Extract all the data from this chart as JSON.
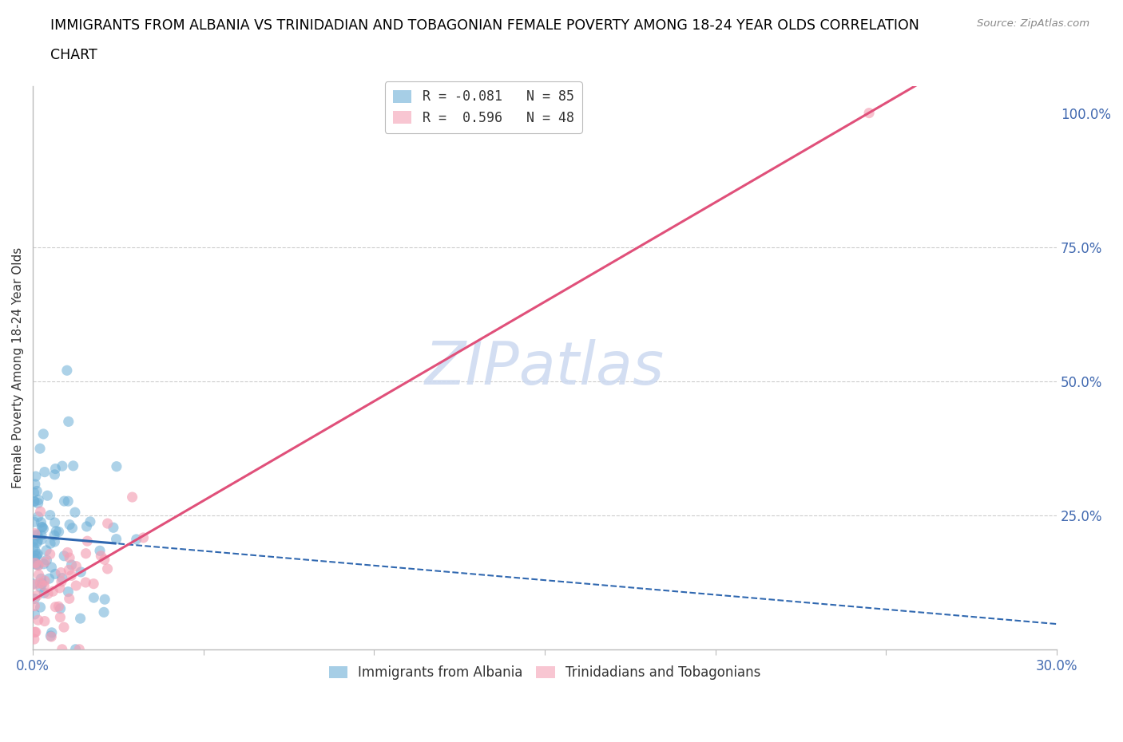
{
  "title_line1": "IMMIGRANTS FROM ALBANIA VS TRINIDADIAN AND TOBAGONIAN FEMALE POVERTY AMONG 18-24 YEAR OLDS CORRELATION",
  "title_line2": "CHART",
  "source": "Source: ZipAtlas.com",
  "ylabel": "Female Poverty Among 18-24 Year Olds",
  "xlim": [
    0.0,
    0.3
  ],
  "ylim": [
    0.0,
    1.05
  ],
  "albania_R": -0.081,
  "albania_N": 85,
  "tt_R": 0.596,
  "tt_N": 48,
  "albania_color": "#6baed6",
  "tt_color": "#f4a0b5",
  "albania_label": "Immigrants from Albania",
  "tt_label": "Trinidadians and Tobagonians",
  "watermark_color": "#ccd9f0",
  "grid_color": "#cccccc",
  "tick_color": "#4169b0",
  "axis_color": "#bbbbbb",
  "title_fontsize": 12.5,
  "axis_label_fontsize": 11,
  "tick_fontsize": 12,
  "legend_fontsize": 12,
  "dot_size": 90,
  "albania_intercept": 0.205,
  "albania_slope": -0.2,
  "tt_intercept": 0.095,
  "tt_slope": 2.3,
  "albania_solid_cutoff": 0.025,
  "tt_solid_cutoff": 0.3
}
